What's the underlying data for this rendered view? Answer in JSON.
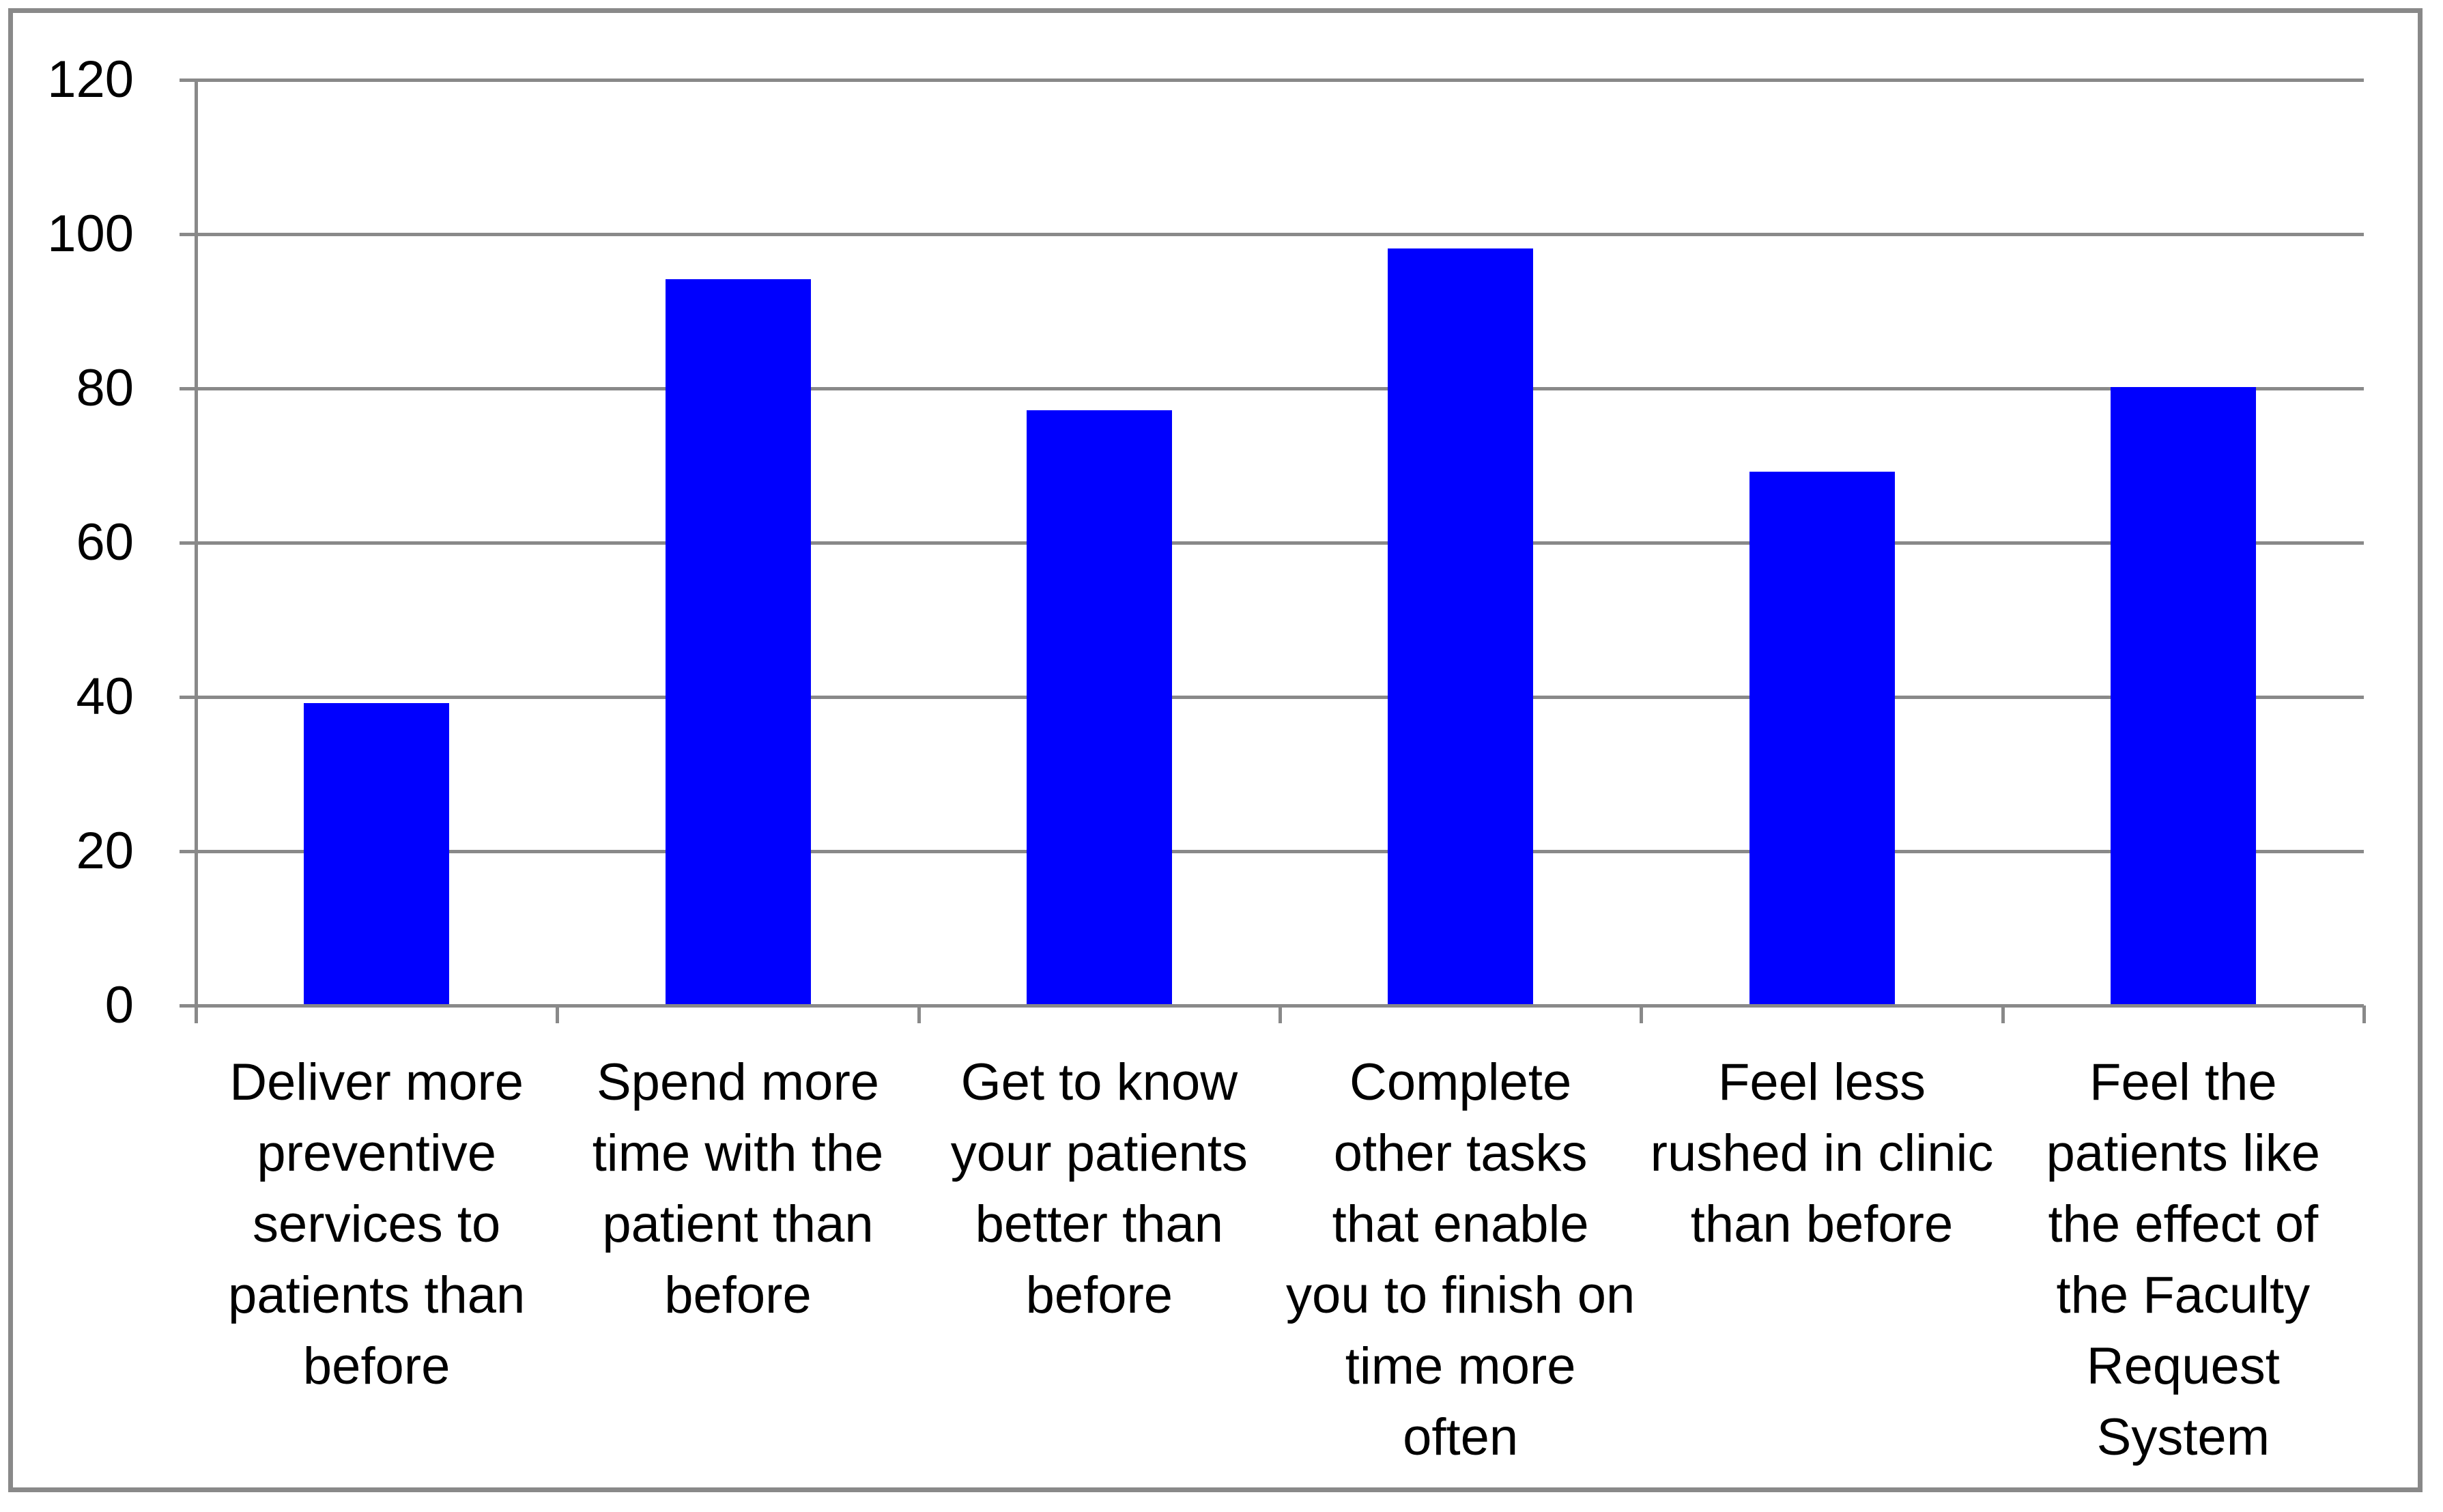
{
  "chart_data": {
    "type": "bar",
    "title": "",
    "xlabel": "",
    "ylabel": "",
    "categories": [
      "Deliver more\npreventive\nservices to\npatients than\nbefore",
      "Spend more\ntime with the\npatient than\nbefore",
      "Get to know\nyour patients\nbetter than\nbefore",
      "Complete\nother tasks\nthat enable\nyou to finish on\ntime more\noften",
      "Feel less\nrushed in clinic\nthan before",
      "Feel the\npatients like\nthe effect of\nthe Faculty\nRequest\nSystem"
    ],
    "values": [
      39,
      94,
      77,
      98,
      69,
      80
    ],
    "yticks": [
      0,
      20,
      40,
      60,
      80,
      100,
      120
    ],
    "ylim": [
      0,
      120
    ],
    "grid": true,
    "legend_position": "none",
    "bar_color": "#0000fe",
    "grid_color": "#898989",
    "border_color": "#898989",
    "text_color": "#000000",
    "background_color": "#ffffff"
  }
}
